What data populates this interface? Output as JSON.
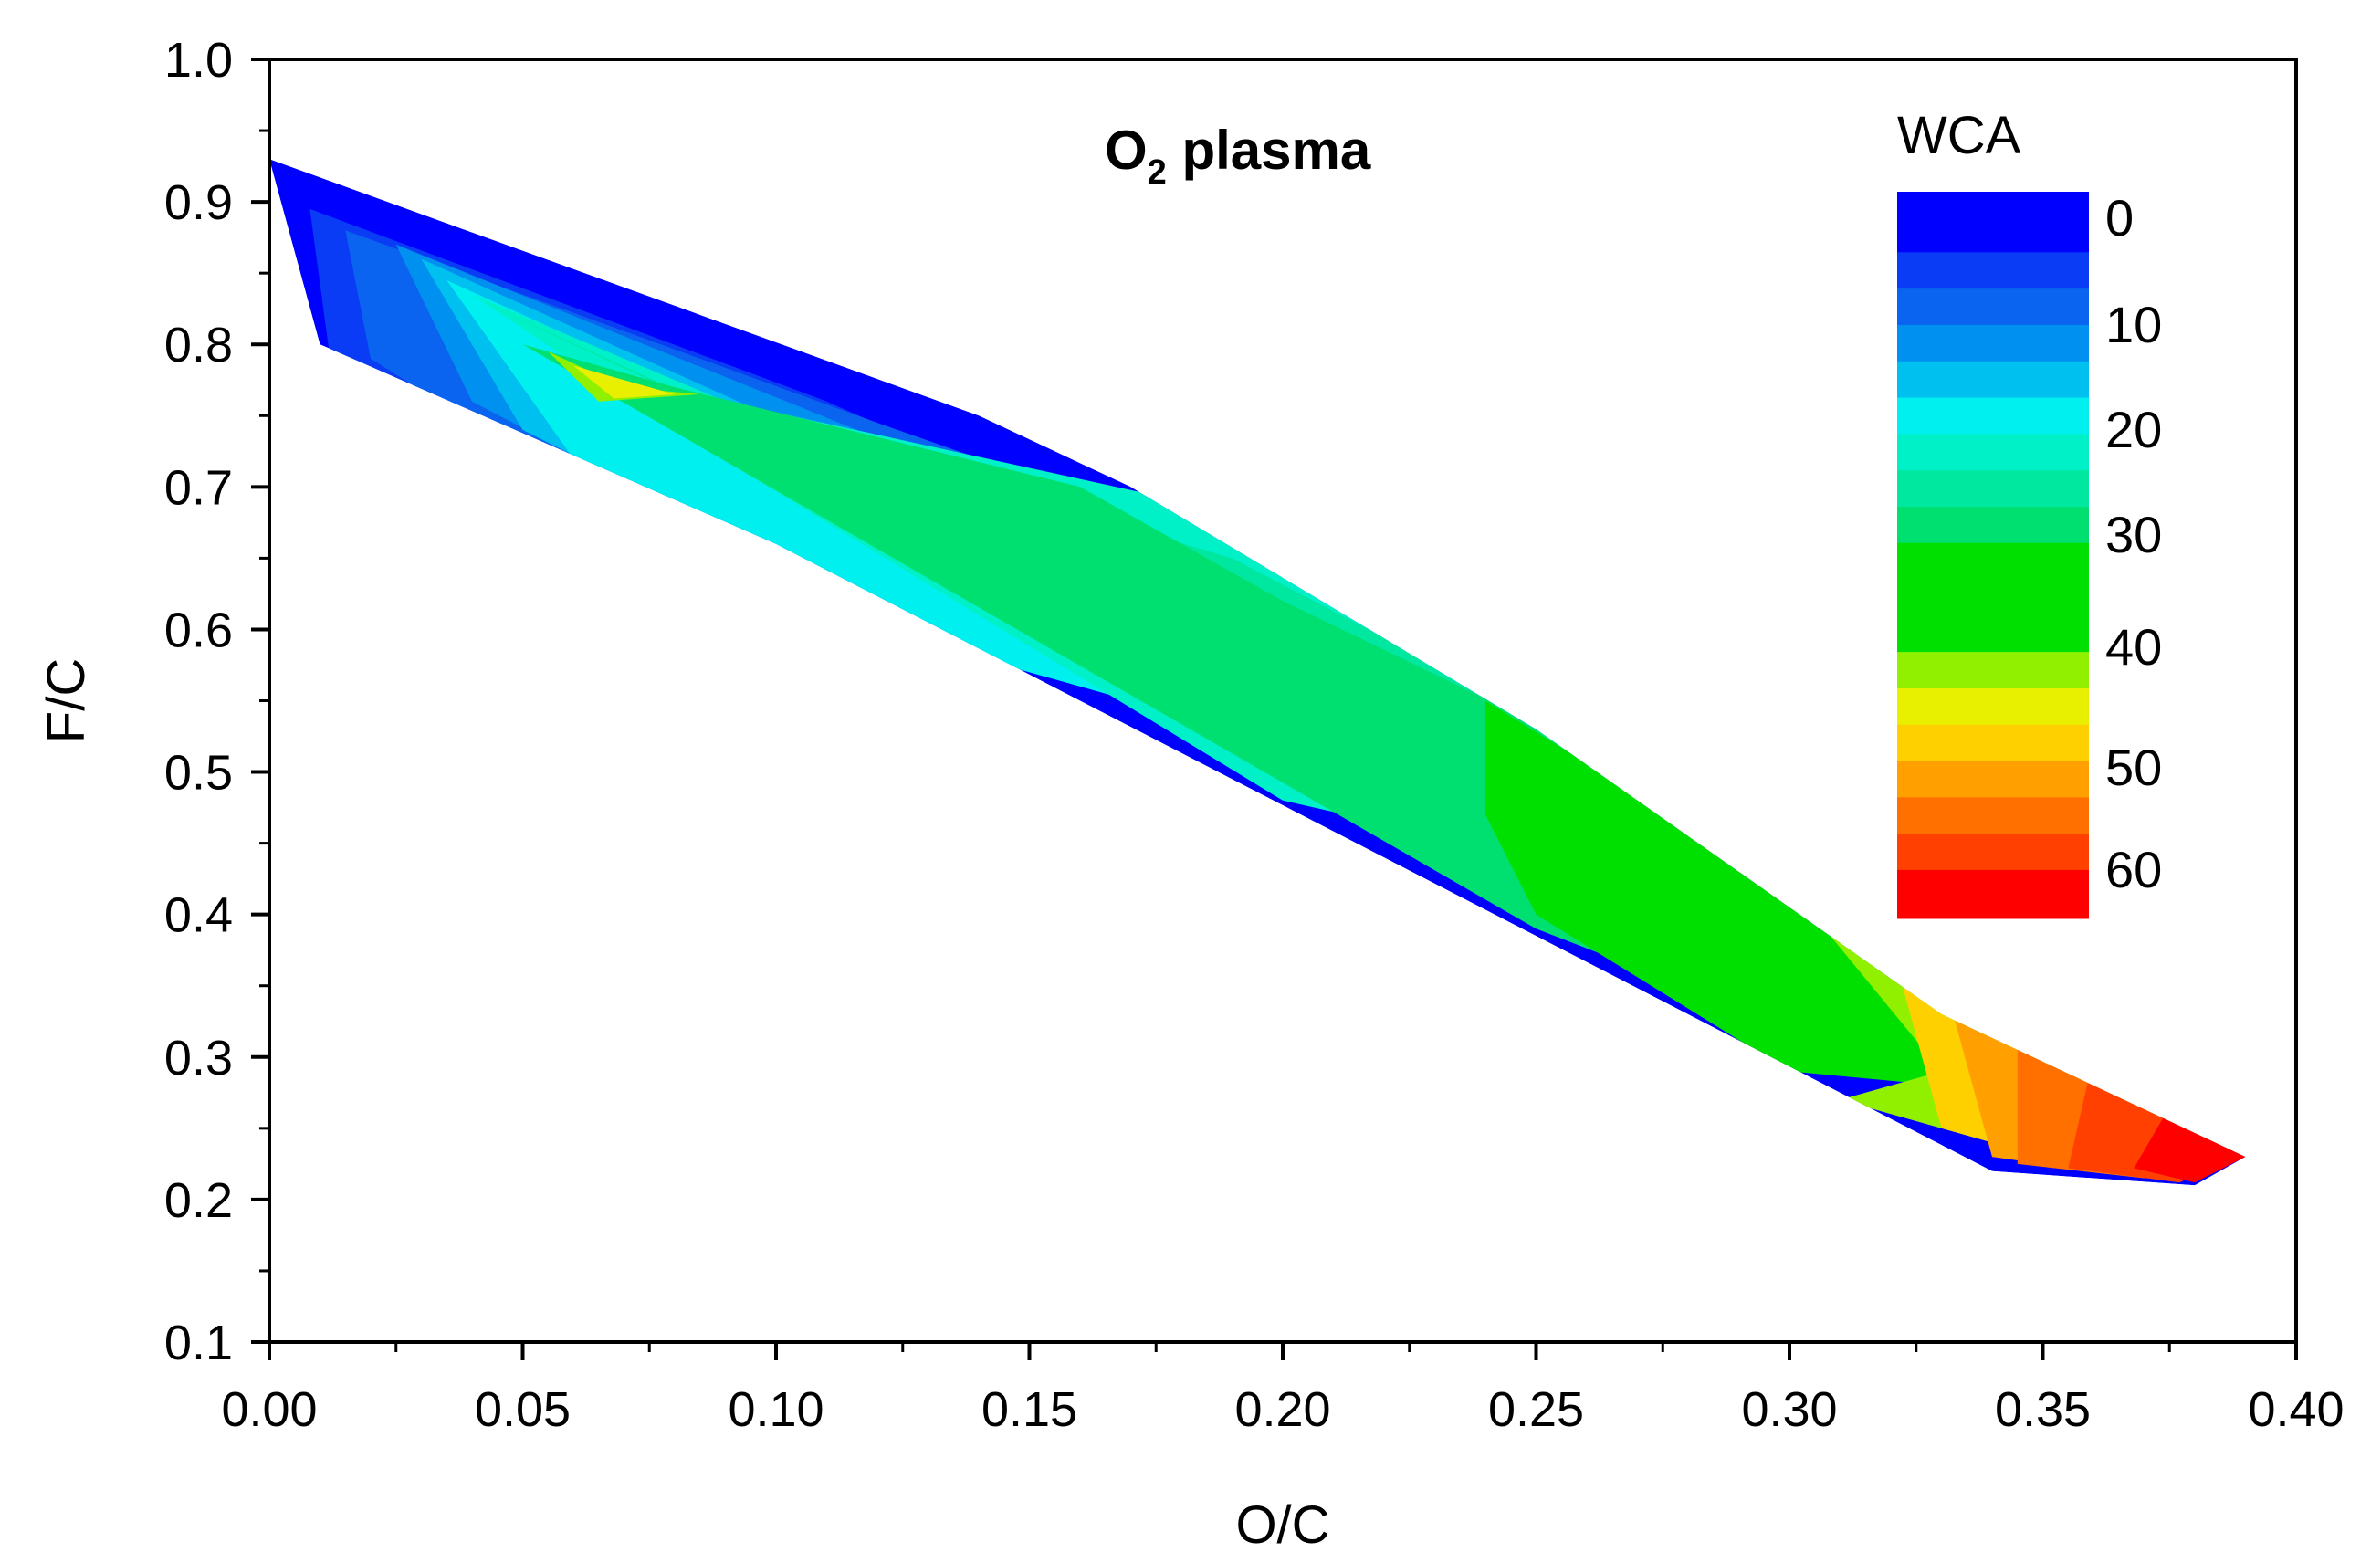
{
  "chart_data": {
    "type": "contour",
    "title_main": "O",
    "title_sub": "2",
    "title_rest": " plasma",
    "xlabel": "O/C",
    "ylabel": "F/C",
    "xlim": [
      0.0,
      0.4
    ],
    "ylim": [
      0.1,
      1.0
    ],
    "x_ticks": [
      0.0,
      0.05,
      0.1,
      0.15,
      0.2,
      0.25,
      0.3,
      0.35,
      0.4
    ],
    "x_tick_labels": [
      "0.00",
      "0.05",
      "0.10",
      "0.15",
      "0.20",
      "0.25",
      "0.30",
      "0.35",
      "0.40"
    ],
    "y_ticks": [
      0.1,
      0.2,
      0.3,
      0.4,
      0.5,
      0.6,
      0.7,
      0.8,
      0.9,
      1.0
    ],
    "y_tick_labels": [
      "0.1",
      "0.2",
      "0.3",
      "0.4",
      "0.5",
      "0.6",
      "0.7",
      "0.8",
      "0.9",
      "1.0"
    ],
    "colorbar": {
      "title": "WCA",
      "labels": [
        {
          "value": 0,
          "text": "0"
        },
        {
          "value": 10,
          "text": "10"
        },
        {
          "value": 20,
          "text": "20"
        },
        {
          "value": 30,
          "text": "30"
        },
        {
          "value": 40,
          "text": "40"
        },
        {
          "value": 50,
          "text": "50"
        },
        {
          "value": 60,
          "text": "60"
        }
      ],
      "bands": [
        {
          "from": 0,
          "to": 5,
          "color": "#0000ff"
        },
        {
          "from": 5,
          "to": 8,
          "color": "#0a3cf5"
        },
        {
          "from": 8,
          "to": 11,
          "color": "#0a64f0"
        },
        {
          "from": 11,
          "to": 14,
          "color": "#0090f0"
        },
        {
          "from": 14,
          "to": 17,
          "color": "#00c0f0"
        },
        {
          "from": 17,
          "to": 20,
          "color": "#00f0f0"
        },
        {
          "from": 20,
          "to": 23,
          "color": "#00f0c8"
        },
        {
          "from": 23,
          "to": 26,
          "color": "#00e8a0"
        },
        {
          "from": 26,
          "to": 29,
          "color": "#00e070"
        },
        {
          "from": 29,
          "to": 38,
          "color": "#00e000"
        },
        {
          "from": 38,
          "to": 41,
          "color": "#90f000"
        },
        {
          "from": 41,
          "to": 44,
          "color": "#e8f000"
        },
        {
          "from": 44,
          "to": 47,
          "color": "#ffd000"
        },
        {
          "from": 47,
          "to": 50,
          "color": "#ffa000"
        },
        {
          "from": 50,
          "to": 53,
          "color": "#ff7000"
        },
        {
          "from": 53,
          "to": 56,
          "color": "#ff4000"
        },
        {
          "from": 56,
          "to": 60,
          "color": "#ff0000"
        }
      ]
    },
    "region_boundary": [
      [
        0.0,
        0.93
      ],
      [
        0.14,
        0.75
      ],
      [
        0.17,
        0.7
      ],
      [
        0.25,
        0.53
      ],
      [
        0.33,
        0.33
      ],
      [
        0.39,
        0.23
      ],
      [
        0.38,
        0.21
      ],
      [
        0.34,
        0.22
      ],
      [
        0.1,
        0.66
      ],
      [
        0.01,
        0.8
      ]
    ],
    "contour_fill": [
      {
        "wca": 3,
        "points": [
          [
            0.0,
            0.93
          ],
          [
            0.14,
            0.75
          ],
          [
            0.17,
            0.7
          ],
          [
            0.11,
            0.66
          ],
          [
            0.01,
            0.8
          ]
        ]
      },
      {
        "wca": 7,
        "points": [
          [
            0.008,
            0.895
          ],
          [
            0.11,
            0.76
          ],
          [
            0.145,
            0.705
          ],
          [
            0.09,
            0.665
          ],
          [
            0.012,
            0.79
          ]
        ]
      },
      {
        "wca": 10,
        "points": [
          [
            0.015,
            0.88
          ],
          [
            0.12,
            0.745
          ],
          [
            0.16,
            0.695
          ],
          [
            0.19,
            0.62
          ],
          [
            0.13,
            0.58
          ],
          [
            0.06,
            0.7
          ],
          [
            0.02,
            0.79
          ]
        ]
      },
      {
        "wca": 13,
        "points": [
          [
            0.025,
            0.87
          ],
          [
            0.13,
            0.72
          ],
          [
            0.17,
            0.66
          ],
          [
            0.17,
            0.6
          ],
          [
            0.11,
            0.63
          ],
          [
            0.04,
            0.76
          ]
        ]
      },
      {
        "wca": 16,
        "points": [
          [
            0.03,
            0.86
          ],
          [
            0.13,
            0.7
          ],
          [
            0.18,
            0.6
          ],
          [
            0.19,
            0.56
          ],
          [
            0.22,
            0.53
          ],
          [
            0.14,
            0.58
          ],
          [
            0.05,
            0.74
          ]
        ]
      },
      {
        "wca": 19,
        "points": [
          [
            0.035,
            0.845
          ],
          [
            0.1,
            0.74
          ],
          [
            0.17,
            0.69
          ],
          [
            0.21,
            0.55
          ],
          [
            0.23,
            0.49
          ],
          [
            0.18,
            0.54
          ],
          [
            0.14,
            0.58
          ],
          [
            0.06,
            0.72
          ]
        ]
      },
      {
        "wca": 22,
        "points": [
          [
            0.04,
            0.835
          ],
          [
            0.09,
            0.76
          ],
          [
            0.18,
            0.69
          ],
          [
            0.24,
            0.55
          ],
          [
            0.25,
            0.44
          ],
          [
            0.2,
            0.48
          ],
          [
            0.08,
            0.74
          ]
        ]
      },
      {
        "wca": 25,
        "points": [
          [
            0.045,
            0.825
          ],
          [
            0.085,
            0.76
          ],
          [
            0.19,
            0.65
          ],
          [
            0.26,
            0.52
          ],
          [
            0.27,
            0.4
          ],
          [
            0.23,
            0.44
          ],
          [
            0.09,
            0.75
          ]
        ]
      },
      {
        "wca": 28,
        "points": [
          [
            0.05,
            0.8
          ],
          [
            0.08,
            0.77
          ],
          [
            0.16,
            0.7
          ],
          [
            0.2,
            0.62
          ],
          [
            0.27,
            0.5
          ],
          [
            0.29,
            0.36
          ],
          [
            0.3,
            0.3
          ],
          [
            0.33,
            0.28
          ],
          [
            0.25,
            0.39
          ]
        ]
      },
      {
        "wca": 33,
        "points": [
          [
            0.24,
            0.55
          ],
          [
            0.29,
            0.44
          ],
          [
            0.33,
            0.33
          ],
          [
            0.33,
            0.28
          ],
          [
            0.3,
            0.29
          ],
          [
            0.25,
            0.4
          ],
          [
            0.24,
            0.47
          ]
        ]
      },
      {
        "wca": 38,
        "points": [
          [
            0.055,
            0.795
          ],
          [
            0.07,
            0.77
          ],
          [
            0.085,
            0.765
          ],
          [
            0.065,
            0.76
          ]
        ]
      },
      {
        "wca": 40,
        "points": [
          [
            0.3,
            0.42
          ],
          [
            0.34,
            0.33
          ],
          [
            0.36,
            0.26
          ],
          [
            0.34,
            0.24
          ],
          [
            0.31,
            0.27
          ],
          [
            0.33,
            0.29
          ]
        ]
      },
      {
        "wca": 43,
        "points": [
          [
            0.06,
            0.785
          ],
          [
            0.07,
            0.775
          ],
          [
            0.08,
            0.765
          ],
          [
            0.068,
            0.762
          ]
        ]
      },
      {
        "wca": 46,
        "points": [
          [
            0.32,
            0.38
          ],
          [
            0.36,
            0.3
          ],
          [
            0.375,
            0.25
          ],
          [
            0.35,
            0.23
          ],
          [
            0.33,
            0.25
          ]
        ]
      },
      {
        "wca": 48,
        "points": [
          [
            0.33,
            0.36
          ],
          [
            0.37,
            0.28
          ],
          [
            0.38,
            0.24
          ],
          [
            0.36,
            0.22
          ],
          [
            0.34,
            0.23
          ]
        ]
      },
      {
        "wca": 51,
        "points": [
          [
            0.345,
            0.33
          ],
          [
            0.38,
            0.26
          ],
          [
            0.385,
            0.235
          ],
          [
            0.37,
            0.215
          ],
          [
            0.345,
            0.225
          ]
        ]
      },
      {
        "wca": 54,
        "points": [
          [
            0.36,
            0.3
          ],
          [
            0.385,
            0.245
          ],
          [
            0.388,
            0.232
          ],
          [
            0.377,
            0.212
          ],
          [
            0.355,
            0.222
          ]
        ]
      },
      {
        "wca": 58,
        "points": [
          [
            0.375,
            0.265
          ],
          [
            0.39,
            0.23
          ],
          [
            0.38,
            0.212
          ],
          [
            0.368,
            0.222
          ]
        ]
      }
    ]
  }
}
